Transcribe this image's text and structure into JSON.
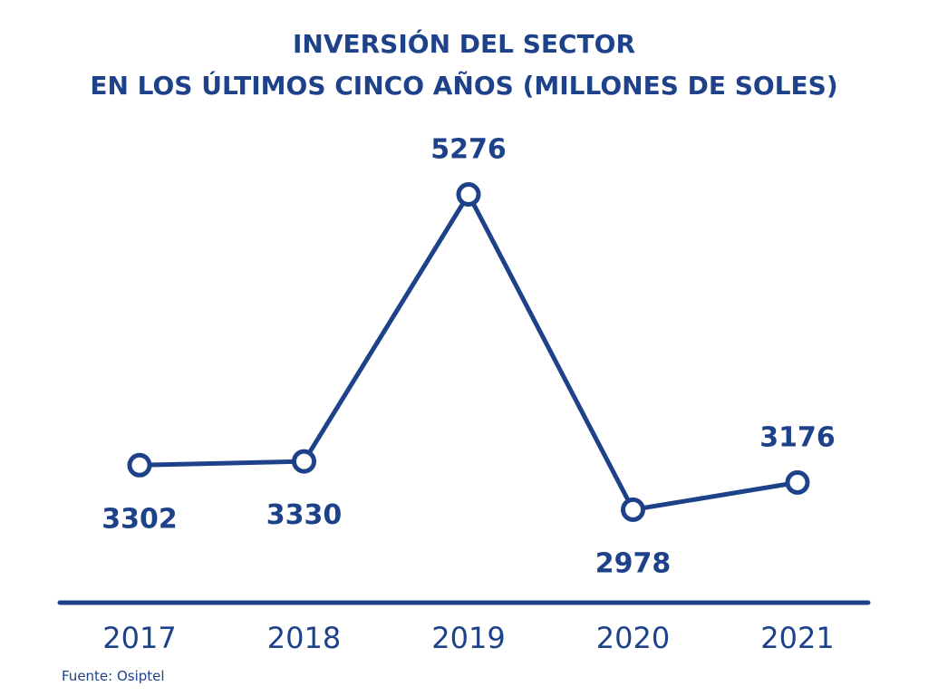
{
  "colors": {
    "accent": "#1e428a",
    "background": "#ffffff"
  },
  "chart_data": {
    "type": "line",
    "title": [
      "INVERSIÓN DEL SECTOR",
      "EN LOS ÚLTIMOS CINCO AÑOS (MILLONES DE SOLES)"
    ],
    "categories": [
      "2017",
      "2018",
      "2019",
      "2020",
      "2021"
    ],
    "values": [
      3302,
      3330,
      5276,
      2978,
      3176
    ],
    "label_positions": [
      "below",
      "below",
      "above",
      "below",
      "above"
    ],
    "xlabel": "",
    "ylabel": "",
    "ylim": [
      2300,
      5900
    ],
    "grid": false,
    "marker": "hollow-circle",
    "source": "Fuente: Osiptel"
  }
}
